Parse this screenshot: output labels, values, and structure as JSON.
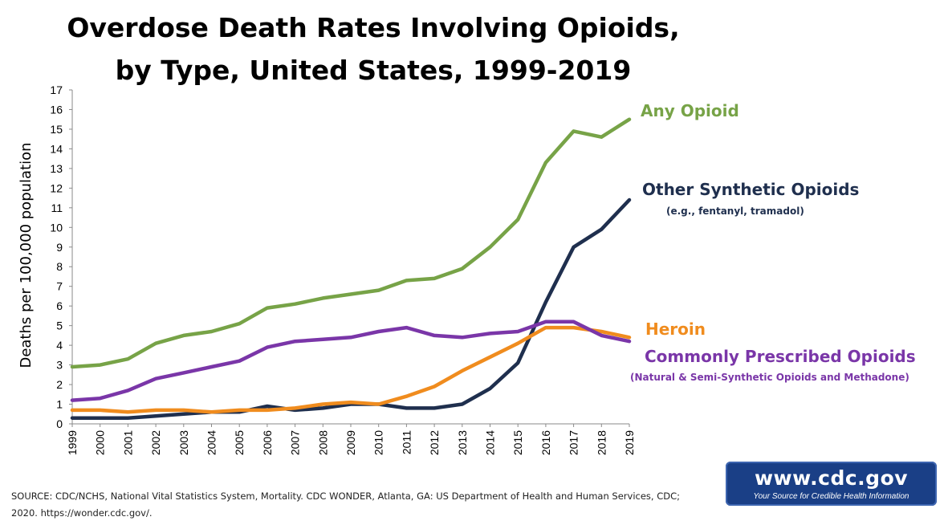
{
  "title": {
    "line1": "Overdose Death Rates Involving Opioids,",
    "line2": "by Type, United States, 1999-2019"
  },
  "chart_data": {
    "type": "line",
    "ylabel": "Deaths per 100,000 population",
    "xlabel": "",
    "ylim": [
      0,
      17
    ],
    "yticks": [
      "0",
      "1",
      "2",
      "3",
      "4",
      "5",
      "6",
      "7",
      "8",
      "9",
      "10",
      "11",
      "12",
      "13",
      "14",
      "15",
      "16",
      "17"
    ],
    "x": [
      "1999",
      "2000",
      "2001",
      "2002",
      "2003",
      "2004",
      "2005",
      "2006",
      "2007",
      "2008",
      "2009",
      "2010",
      "2011",
      "2012",
      "2013",
      "2014",
      "2015",
      "2016",
      "2017",
      "2018",
      "2019"
    ],
    "grid": false,
    "legend": "direct labels at right of lines",
    "series": [
      {
        "name": "Any Opioid",
        "color": "#77a347",
        "values": [
          2.9,
          3.0,
          3.3,
          4.1,
          4.5,
          4.7,
          5.1,
          5.9,
          6.1,
          6.4,
          6.6,
          6.8,
          7.3,
          7.4,
          7.9,
          9.0,
          10.4,
          13.3,
          14.9,
          14.6,
          15.5
        ]
      },
      {
        "name": "Other Synthetic Opioids",
        "note": "(e.g., fentanyl, tramadol)",
        "color": "#1f2f4e",
        "values": [
          0.3,
          0.3,
          0.3,
          0.4,
          0.5,
          0.6,
          0.6,
          0.9,
          0.7,
          0.8,
          1.0,
          1.0,
          0.8,
          0.8,
          1.0,
          1.8,
          3.1,
          6.2,
          9.0,
          9.9,
          11.4
        ]
      },
      {
        "name": "Heroin",
        "color": "#f08c1e",
        "values": [
          0.7,
          0.7,
          0.6,
          0.7,
          0.7,
          0.6,
          0.7,
          0.7,
          0.8,
          1.0,
          1.1,
          1.0,
          1.4,
          1.9,
          2.7,
          3.4,
          4.1,
          4.9,
          4.9,
          4.7,
          4.4
        ]
      },
      {
        "name": "Commonly Prescribed Opioids",
        "note": "(Natural & Semi-Synthetic Opioids and Methadone)",
        "color": "#7a36a8",
        "values": [
          1.2,
          1.3,
          1.7,
          2.3,
          2.6,
          2.9,
          3.2,
          3.9,
          4.2,
          4.3,
          4.4,
          4.7,
          4.9,
          4.5,
          4.4,
          4.6,
          4.7,
          5.2,
          5.2,
          4.5,
          4.2
        ]
      }
    ]
  },
  "source": "SOURCE: CDC/NCHS, National Vital Statistics System, Mortality. CDC WONDER, Atlanta, GA: US Department of Health and Human Services, CDC; 2020. https://wonder.cdc.gov/.",
  "logo": {
    "url": "www.cdc.gov",
    "tagline": "Your Source for Credible Health Information"
  }
}
